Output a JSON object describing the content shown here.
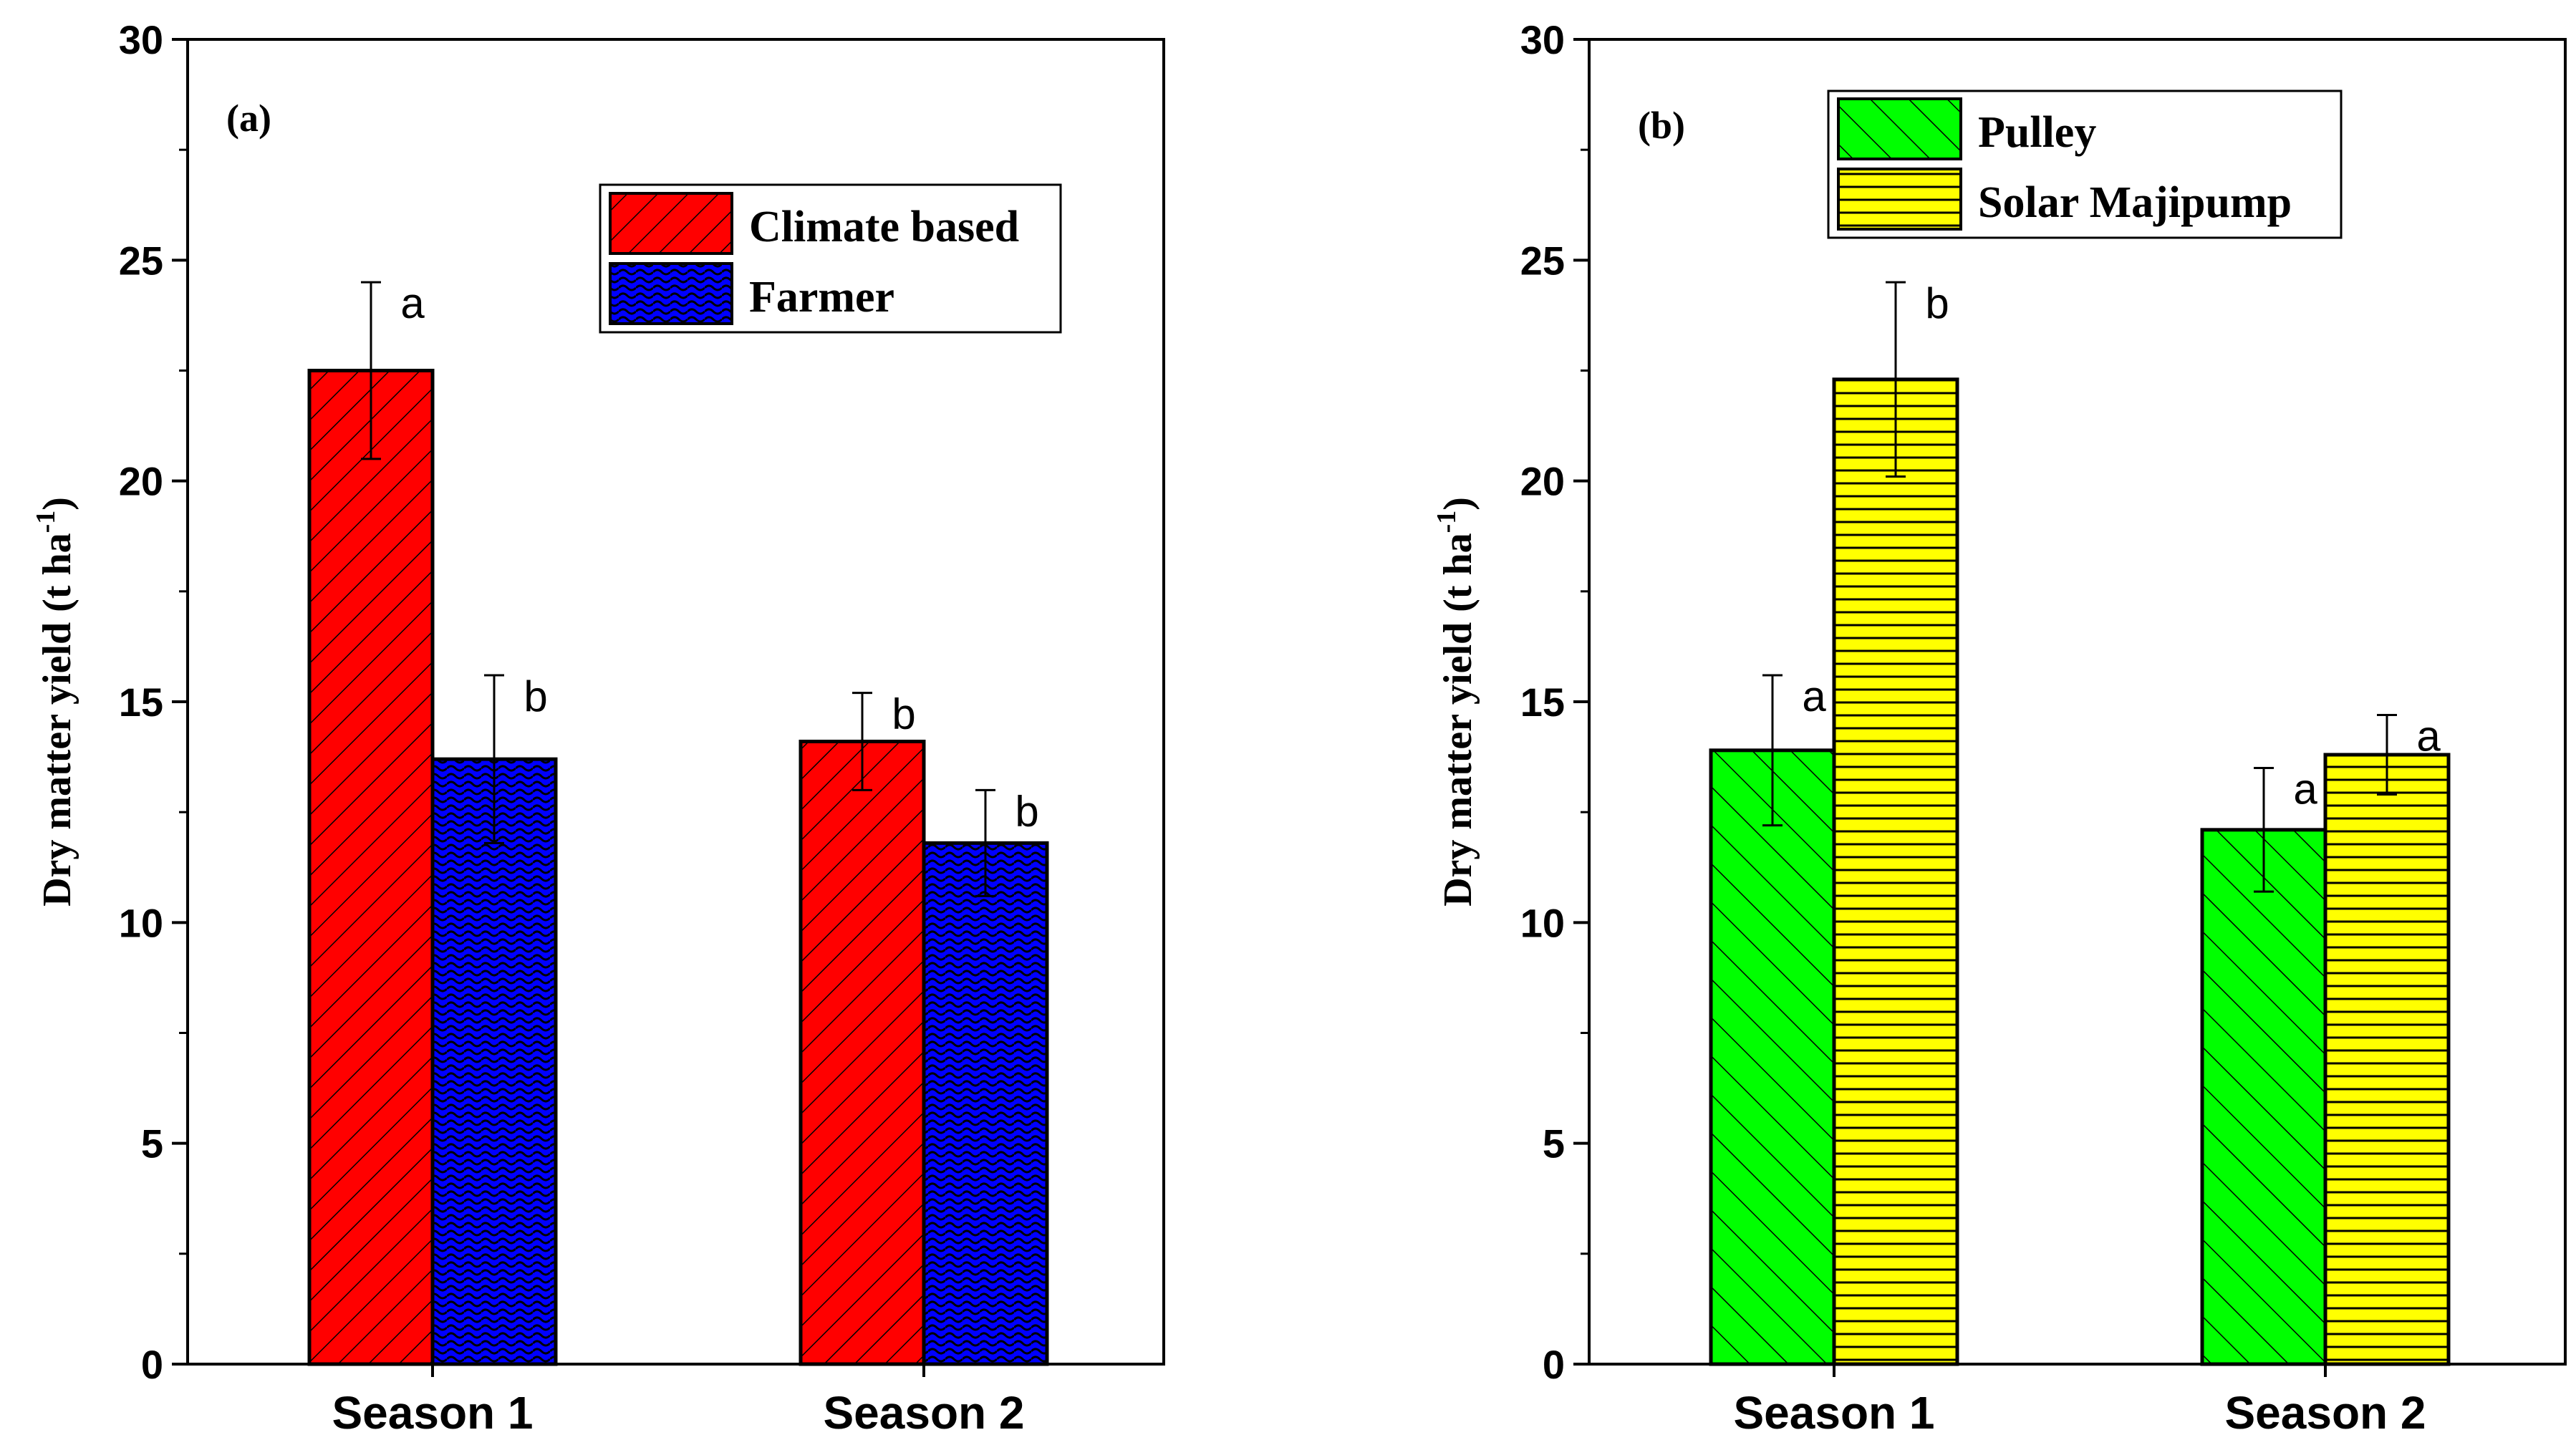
{
  "colors": {
    "climate": "#ff0000",
    "farmer": "#0000ff",
    "pulley": "#00ff00",
    "solar": "#ffff00",
    "ink": "#000000"
  },
  "chart_data": [
    {
      "type": "bar",
      "panel": "(a)",
      "categories": [
        "Season 1",
        "Season 2"
      ],
      "ylabel": "Dry matter yield (t ha",
      "ylabel_sup": "-1",
      "ylabel_close": ")",
      "ylim": [
        0,
        30
      ],
      "yticks": [
        "0",
        "5",
        "10",
        "15",
        "20",
        "25",
        "30"
      ],
      "legend_position": "upper-right",
      "series": [
        {
          "name": "Climate based",
          "values": [
            22.5,
            14.1
          ],
          "errors": [
            2.0,
            1.1
          ],
          "letters": [
            "a",
            "b"
          ],
          "color_key": "climate",
          "pattern": "diag-up"
        },
        {
          "name": "Farmer",
          "values": [
            13.7,
            11.8
          ],
          "errors": [
            1.9,
            1.2
          ],
          "letters": [
            "b",
            "b"
          ],
          "color_key": "farmer",
          "pattern": "wavy"
        }
      ]
    },
    {
      "type": "bar",
      "panel": "(b)",
      "categories": [
        "Season 1",
        "Season 2"
      ],
      "ylabel": "Dry matter yield (t ha",
      "ylabel_sup": "-1",
      "ylabel_close": ")",
      "ylim": [
        0,
        30
      ],
      "yticks": [
        "0",
        "5",
        "10",
        "15",
        "20",
        "25",
        "30"
      ],
      "legend_position": "upper-left",
      "series": [
        {
          "name": "Pulley",
          "values": [
            13.9,
            12.1
          ],
          "errors": [
            1.7,
            1.4
          ],
          "letters": [
            "a",
            "a"
          ],
          "color_key": "pulley",
          "pattern": "diag-down"
        },
        {
          "name": "Solar Majipump",
          "values": [
            22.3,
            13.8
          ],
          "errors": [
            2.2,
            0.9
          ],
          "letters": [
            "b",
            "a"
          ],
          "color_key": "solar",
          "pattern": "horizontal"
        }
      ]
    }
  ]
}
